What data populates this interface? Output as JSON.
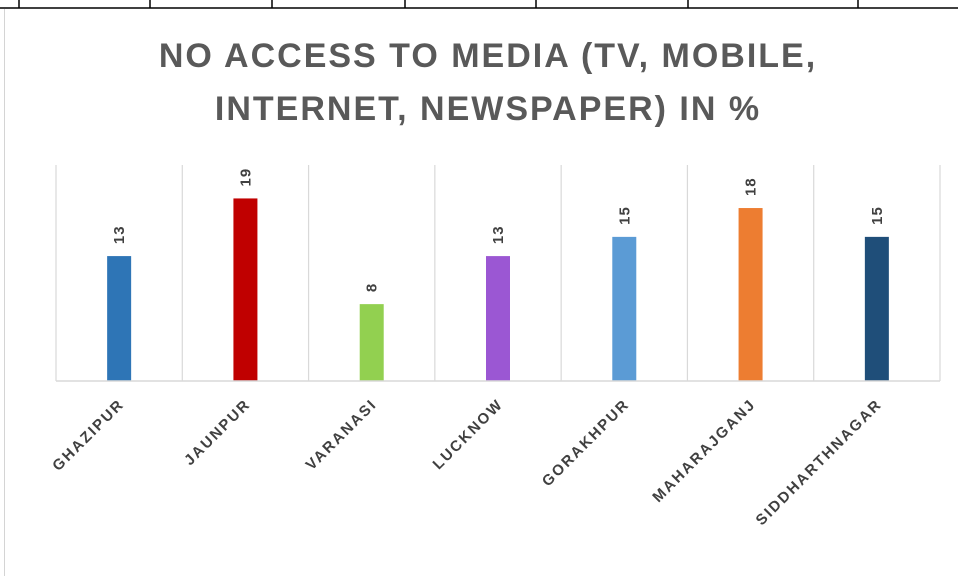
{
  "chart_data": {
    "type": "bar",
    "title_lines": [
      "NO ACCESS TO MEDIA (TV, MOBILE,",
      "INTERNET, NEWSPAPER) IN %"
    ],
    "categories": [
      "GHAZIPUR",
      "JAUNPUR",
      "VARANASI",
      "LUCKNOW",
      "GORAKHPUR",
      "MAHARAJGANJ",
      "SIDDHARTHNAGAR"
    ],
    "values": [
      13,
      19,
      8,
      13,
      15,
      18,
      15
    ],
    "colors": [
      "#2e75b6",
      "#c00000",
      "#92d050",
      "#9b57d3",
      "#5b9bd5",
      "#ed7d31",
      "#1f4e79"
    ],
    "ylim": [
      0,
      23
    ],
    "grid": "vertical category separators",
    "data_labels": true,
    "legend": "none"
  }
}
